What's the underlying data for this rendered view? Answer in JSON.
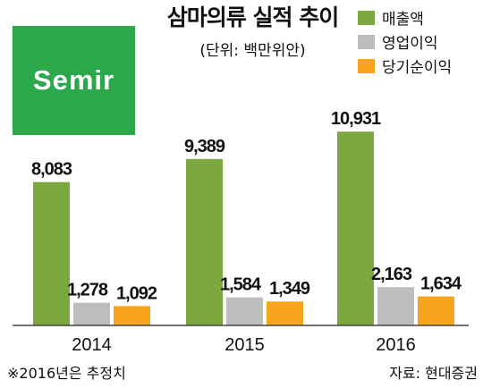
{
  "logo": {
    "text": "Semir",
    "color": "#2aa84a"
  },
  "chart_data": {
    "type": "bar",
    "title": "삼마의류 실적 추이",
    "subtitle": "(단위: 백만위안)",
    "categories": [
      "2014",
      "2015",
      "2016"
    ],
    "series": [
      {
        "name": "매출액",
        "color": "#7aa83e",
        "values": [
          8083,
          9389,
          10931
        ],
        "labels": [
          "8,083",
          "9,389",
          "10,931"
        ]
      },
      {
        "name": "영업이익",
        "color": "#bdbdbd",
        "values": [
          1278,
          1584,
          2163
        ],
        "labels": [
          "1,278",
          "1,584",
          "2,163"
        ]
      },
      {
        "name": "당기순이익",
        "color": "#f7a51c",
        "values": [
          1092,
          1349,
          1634
        ],
        "labels": [
          "1,092",
          "1,349",
          "1,634"
        ]
      }
    ],
    "ylim": [
      0,
      12000
    ],
    "grid": false,
    "legend": "top-right",
    "footnote": "※2016년은 추정치",
    "source": "자료: 현대증권"
  }
}
